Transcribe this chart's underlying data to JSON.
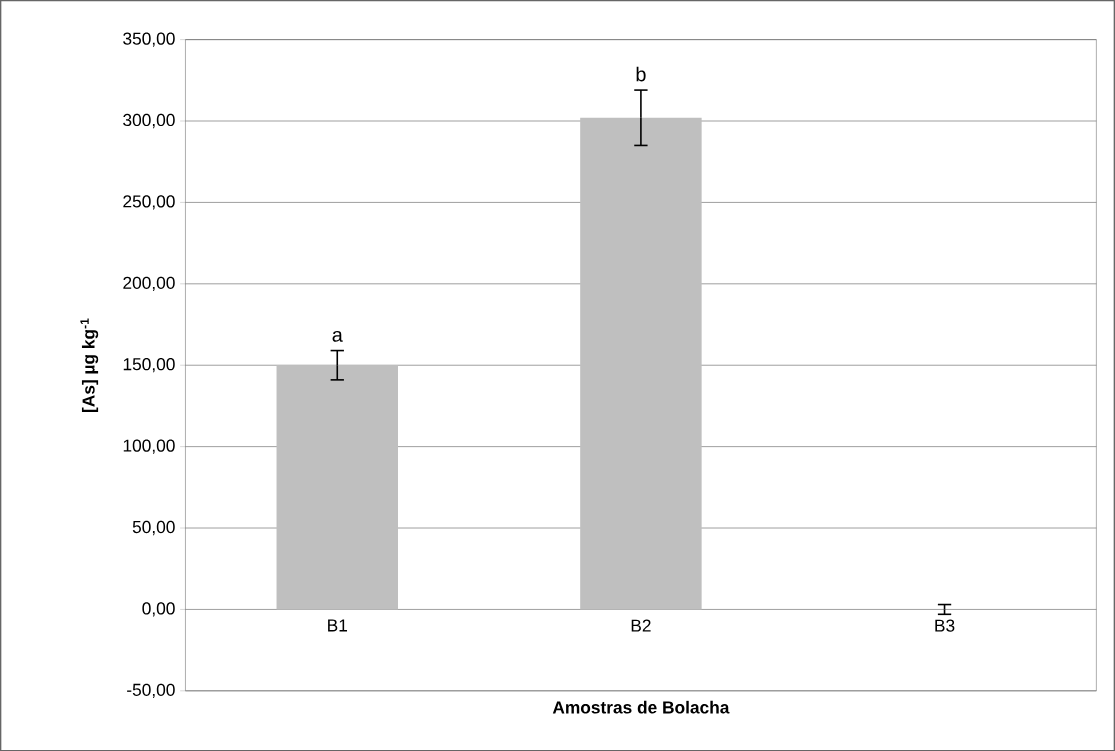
{
  "chart_data": {
    "type": "bar",
    "xlabel": "Amostras de Bolacha",
    "ylabel": "[As] µg kg$^{-1}$",
    "categories": [
      "B1",
      "B2",
      "B3"
    ],
    "values": [
      150,
      302,
      0
    ],
    "errors": [
      9,
      17,
      3
    ],
    "color": "#bfbfbf",
    "ylim": [
      -50,
      350
    ],
    "yticks": [
      {
        "value": -50,
        "label": "-50,00"
      },
      {
        "value": 0,
        "label": "0,00"
      },
      {
        "value": 50,
        "label": "50,00"
      },
      {
        "value": 100,
        "label": "100,00"
      },
      {
        "value": 150,
        "label": "150,00"
      },
      {
        "value": 200,
        "label": "200,00"
      },
      {
        "value": 250,
        "label": "250,00"
      },
      {
        "value": 300,
        "label": "300,00"
      },
      {
        "value": 350,
        "label": "350,00"
      }
    ],
    "grid": "y",
    "annotations": [
      "a",
      "b"
    ]
  }
}
